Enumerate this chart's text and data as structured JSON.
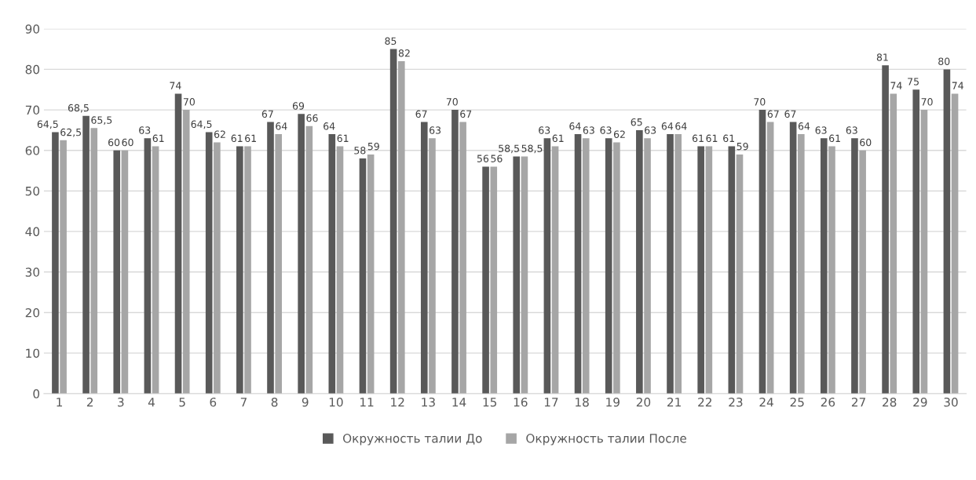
{
  "chart_data": {
    "type": "bar",
    "categories": [
      "1",
      "2",
      "3",
      "4",
      "5",
      "6",
      "7",
      "8",
      "9",
      "10",
      "11",
      "12",
      "13",
      "14",
      "15",
      "16",
      "17",
      "18",
      "19",
      "20",
      "21",
      "22",
      "23",
      "24",
      "25",
      "26",
      "27",
      "28",
      "29",
      "30"
    ],
    "series": [
      {
        "name": "Окружность талии До",
        "color": "#595959",
        "values": [
          64.5,
          68.5,
          60,
          63,
          74,
          64.5,
          61,
          67,
          69,
          64,
          58,
          85,
          67,
          70,
          56,
          58.5,
          63,
          64,
          63,
          65,
          64,
          61,
          61,
          70,
          67,
          63,
          63,
          81,
          75,
          80
        ],
        "value_labels": [
          "64,5",
          "68,5",
          "60",
          "63",
          "74",
          "64,5",
          "61",
          "67",
          "69",
          "64",
          "58",
          "85",
          "67",
          "70",
          "56",
          "58,5",
          "63",
          "64",
          "63",
          "65",
          "64",
          "61",
          "61",
          "70",
          "67",
          "63",
          "63",
          "81",
          "75",
          "80"
        ]
      },
      {
        "name": "Окружность талии После",
        "color": "#a6a6a6",
        "values": [
          62.5,
          65.5,
          60,
          61,
          70,
          62,
          61,
          64,
          66,
          61,
          59,
          82,
          63,
          67,
          56,
          58.5,
          61,
          63,
          62,
          63,
          64,
          61,
          59,
          67,
          64,
          61,
          60,
          74,
          70,
          74
        ],
        "value_labels": [
          "62,5",
          "65,5",
          "60",
          "61",
          "70",
          "62",
          "61",
          "64",
          "66",
          "61",
          "59",
          "82",
          "63",
          "67",
          "56",
          "58,5",
          "61",
          "63",
          "62",
          "63",
          "64",
          "61",
          "59",
          "67",
          "64",
          "61",
          "60",
          "74",
          "70",
          "74"
        ]
      }
    ],
    "ylim": [
      0,
      90
    ],
    "yticks": [
      0,
      10,
      20,
      30,
      40,
      50,
      60,
      70,
      80,
      90
    ],
    "grid": "y",
    "legend": "bottom"
  }
}
